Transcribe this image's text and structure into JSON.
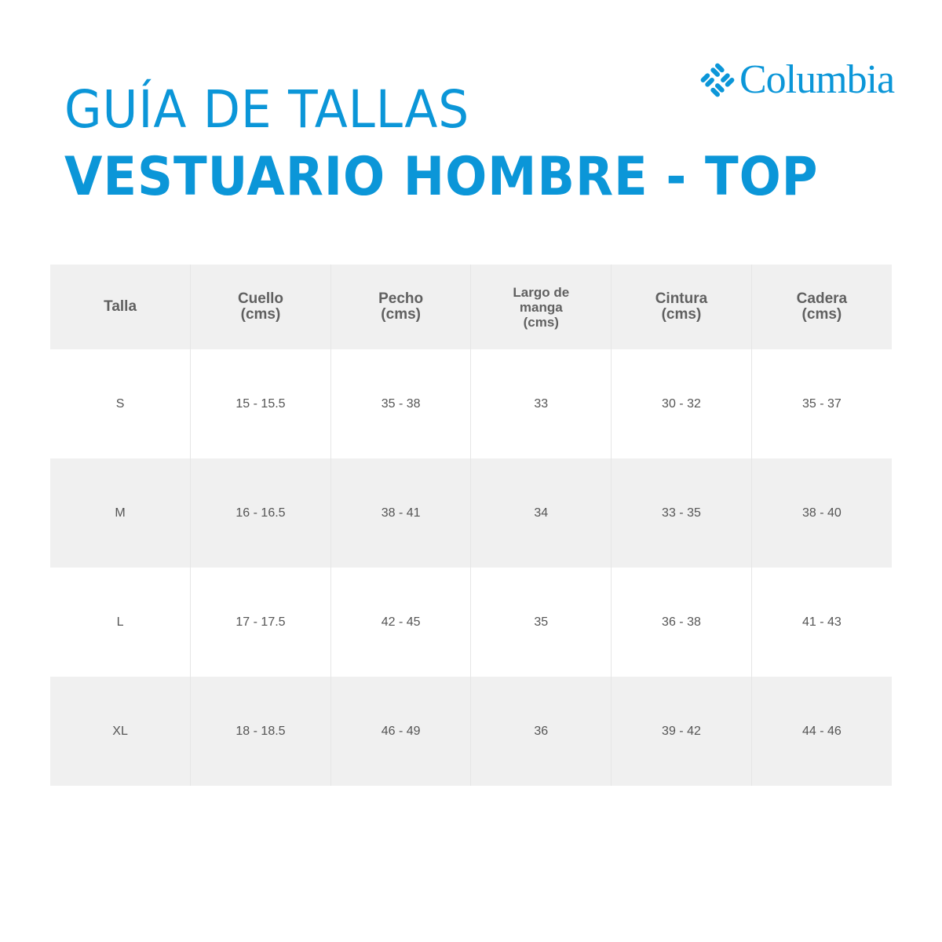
{
  "title_line1": "GUÍA DE TALLAS",
  "title_line2": "VESTUARIO HOMBRE - TOP",
  "brand": {
    "name": "Columbia",
    "color": "#0b96d8"
  },
  "table": {
    "headers": [
      {
        "line1": "Talla",
        "line2": ""
      },
      {
        "line1": "Cuello",
        "line2": "(cms)"
      },
      {
        "line1": "Pecho",
        "line2": "(cms)"
      },
      {
        "line1": "Largo de manga",
        "line2": "(cms)"
      },
      {
        "line1": "Cintura",
        "line2": "(cms)"
      },
      {
        "line1": "Cadera",
        "line2": "(cms)"
      }
    ],
    "rows": [
      [
        "S",
        "15 - 15.5",
        "35 - 38",
        "33",
        "30 - 32",
        "35 - 37"
      ],
      [
        "M",
        "16 - 16.5",
        "38 - 41",
        "34",
        "33 - 35",
        "38 - 40"
      ],
      [
        "L",
        "17 - 17.5",
        "42 - 45",
        "35",
        "36 - 38",
        "41 - 43"
      ],
      [
        "XL",
        "18 - 18.5",
        "46 - 49",
        "36",
        "39 - 42",
        "44 - 46"
      ]
    ]
  }
}
